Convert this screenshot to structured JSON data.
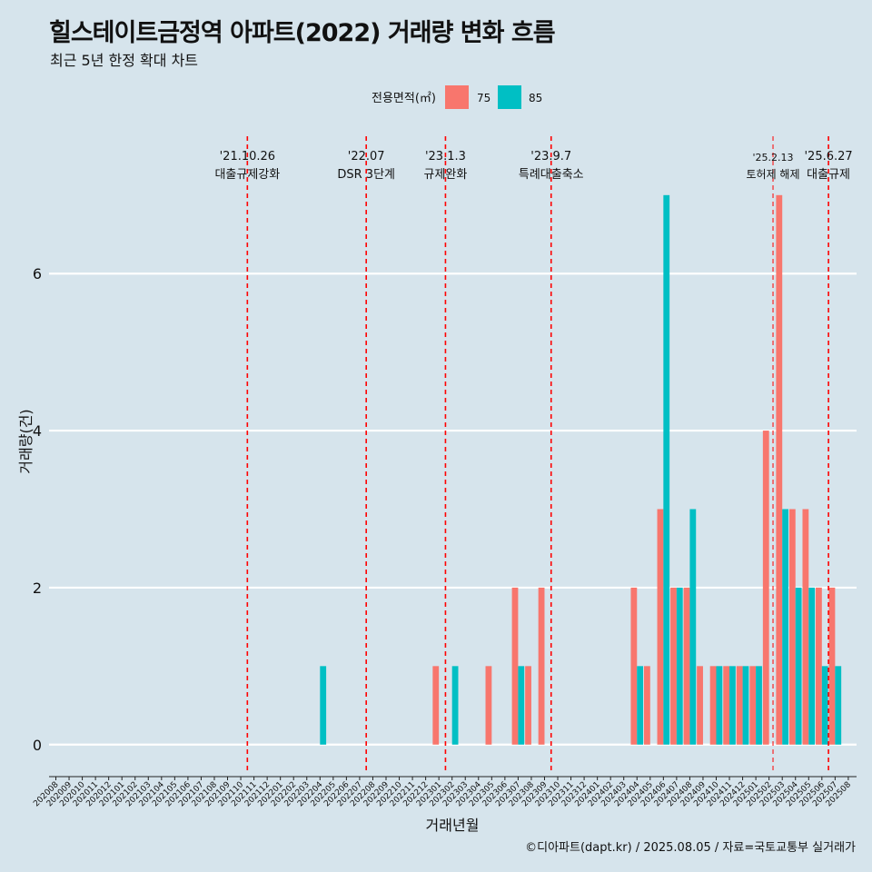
{
  "chart_data": {
    "type": "bar",
    "title": "힐스테이트금정역 아파트(2022) 거래량 변화 흐름",
    "subtitle": "최근 5년 한정 확대 차트",
    "xlabel": "거래년월",
    "ylabel": "거래량(건)",
    "caption": "©디아파트(dapt.kr) / 2025.08.05 / 자료=국토교통부 실거래가",
    "legend": {
      "title": "전용면적(㎡)",
      "placement": "top"
    },
    "ylim": [
      -0.35,
      7.75
    ],
    "yticks": [
      0,
      2,
      4,
      6
    ],
    "grid": true,
    "categories": [
      "202008",
      "202009",
      "202010",
      "202011",
      "202012",
      "202101",
      "202102",
      "202103",
      "202104",
      "202105",
      "202106",
      "202107",
      "202108",
      "202109",
      "202110",
      "202111",
      "202112",
      "202201",
      "202202",
      "202203",
      "202204",
      "202205",
      "202206",
      "202207",
      "202208",
      "202209",
      "202210",
      "202211",
      "202212",
      "202301",
      "202302",
      "202303",
      "202304",
      "202305",
      "202306",
      "202307",
      "202308",
      "202309",
      "202310",
      "202311",
      "202312",
      "202401",
      "202402",
      "202403",
      "202404",
      "202405",
      "202406",
      "202407",
      "202408",
      "202409",
      "202410",
      "202411",
      "202412",
      "202501",
      "202502",
      "202503",
      "202504",
      "202505",
      "202506",
      "202507",
      "202508"
    ],
    "series": [
      {
        "name": "75",
        "color": "#f8766d",
        "values": [
          0,
          0,
          0,
          0,
          0,
          0,
          0,
          0,
          0,
          0,
          0,
          0,
          0,
          0,
          0,
          0,
          0,
          0,
          0,
          0,
          0,
          0,
          0,
          0,
          0,
          0,
          0,
          0,
          0,
          1,
          0,
          0,
          0,
          1,
          0,
          2,
          1,
          2,
          0,
          0,
          0,
          0,
          0,
          0,
          2,
          1,
          3,
          2,
          2,
          1,
          1,
          1,
          1,
          1,
          4,
          7,
          3,
          3,
          2,
          2,
          0
        ]
      },
      {
        "name": "85",
        "color": "#00bfc4",
        "values": [
          0,
          0,
          0,
          0,
          0,
          0,
          0,
          0,
          0,
          0,
          0,
          0,
          0,
          0,
          0,
          0,
          0,
          0,
          0,
          0,
          1,
          0,
          0,
          0,
          0,
          0,
          0,
          0,
          0,
          0,
          1,
          0,
          0,
          0,
          0,
          1,
          0,
          0,
          0,
          0,
          0,
          0,
          0,
          0,
          1,
          0,
          7,
          2,
          3,
          0,
          1,
          1,
          1,
          1,
          0,
          3,
          2,
          2,
          1,
          1,
          0
        ]
      }
    ],
    "annotations": [
      {
        "index": 14.5,
        "date": "'21.10.26",
        "label": "대출규제강화"
      },
      {
        "index": 23.5,
        "date": "'22.07",
        "label": "DSR 3단계"
      },
      {
        "index": 29.5,
        "date": "'23.1.3",
        "label": "규제완화"
      },
      {
        "index": 37.5,
        "date": "'23.9.7",
        "label": "특례대출축소"
      },
      {
        "index": 54.3,
        "date": "'25.2.13",
        "label": "토허제 해제"
      },
      {
        "index": 58.5,
        "date": "'25.6.27",
        "label": "대출규제"
      }
    ]
  }
}
